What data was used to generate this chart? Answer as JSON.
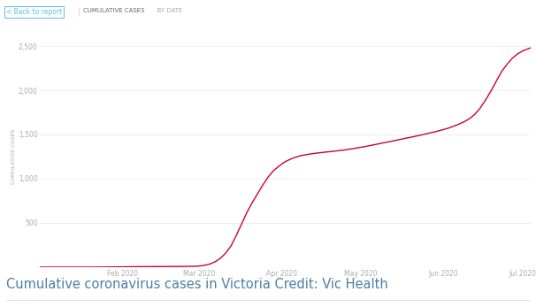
{
  "title": "Cumulative coronavirus cases in Victoria Credit: Vic Health",
  "title_color": "#4a7fa5",
  "title_fontsize": 10.5,
  "background_color": "#ffffff",
  "line_color": "#cc0033",
  "line_width": 1.0,
  "ylim": [
    0,
    2500
  ],
  "yticks": [
    500,
    1000,
    1500,
    2000,
    2500
  ],
  "ytick_labels": [
    "500",
    "1,000",
    "1,500",
    "2,000",
    "2,500"
  ],
  "ylabel": "CUMULATIVE CASES",
  "ylabel_fontsize": 4.5,
  "ylabel_color": "#aaaaaa",
  "tick_label_color": "#aaaaaa",
  "tick_label_fontsize": 5.5,
  "header_back": "< Back to report",
  "header_cum": "CUMULATIVE CASES",
  "header_by": "BY DATE",
  "grid_color": "#e8e8e8",
  "x_dates": [
    "Feb 2020",
    "Mar 2020",
    "Apr 2020",
    "May 2020",
    "Jun 2020",
    "Jul 2020"
  ],
  "x_positions": [
    31,
    60,
    91,
    121,
    152,
    182
  ],
  "xlim": [
    0,
    185
  ],
  "data_x": [
    0,
    4,
    8,
    12,
    16,
    20,
    24,
    28,
    31,
    34,
    37,
    40,
    43,
    46,
    49,
    52,
    55,
    58,
    60,
    62,
    64,
    66,
    68,
    70,
    72,
    74,
    76,
    78,
    80,
    82,
    84,
    86,
    88,
    90,
    92,
    94,
    96,
    98,
    100,
    102,
    104,
    106,
    108,
    110,
    112,
    114,
    116,
    118,
    120,
    122,
    124,
    126,
    128,
    130,
    132,
    134,
    136,
    138,
    140,
    142,
    144,
    146,
    148,
    150,
    152,
    154,
    156,
    158,
    160,
    162,
    164,
    166,
    168,
    170,
    172,
    174,
    176,
    178,
    180,
    182,
    185
  ],
  "data_y": [
    0,
    0,
    0,
    0,
    0,
    0,
    1,
    2,
    3,
    4,
    5,
    5,
    6,
    6,
    7,
    7,
    8,
    9,
    12,
    20,
    35,
    60,
    100,
    160,
    240,
    360,
    490,
    620,
    730,
    830,
    930,
    1020,
    1090,
    1140,
    1185,
    1215,
    1240,
    1258,
    1270,
    1280,
    1288,
    1295,
    1302,
    1308,
    1315,
    1322,
    1330,
    1340,
    1350,
    1360,
    1372,
    1384,
    1396,
    1408,
    1420,
    1432,
    1445,
    1458,
    1470,
    1483,
    1496,
    1510,
    1524,
    1538,
    1555,
    1572,
    1594,
    1618,
    1645,
    1680,
    1730,
    1800,
    1890,
    1990,
    2100,
    2210,
    2290,
    2360,
    2410,
    2445,
    2480
  ]
}
